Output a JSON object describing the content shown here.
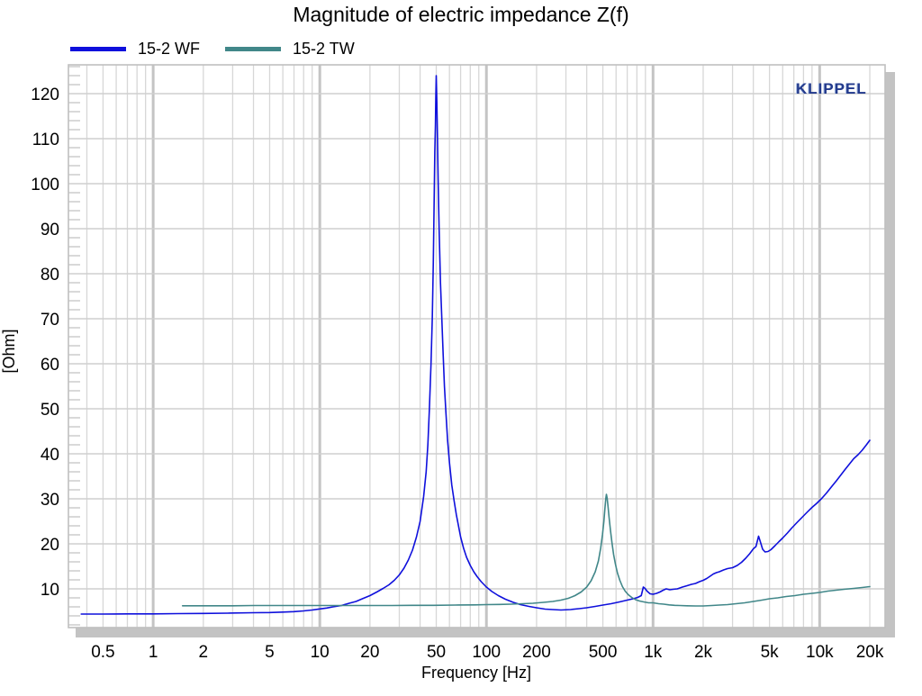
{
  "branding": {
    "watermark": "KLIPPEL",
    "color": "#233a8c"
  },
  "chart_data": {
    "type": "line",
    "title": "Magnitude of electric impedance Z(f)",
    "xlabel": "Frequency [Hz]",
    "ylabel": "[Ohm]",
    "x_scale": "log",
    "y_scale": "linear",
    "xlim": [
      0.31,
      24700
    ],
    "ylim": [
      1.4,
      126.4
    ],
    "grid": true,
    "legend_position": "top-left",
    "x_ticks": [
      {
        "label": "0.5",
        "value": 0.5
      },
      {
        "label": "1",
        "value": 1
      },
      {
        "label": "2",
        "value": 2
      },
      {
        "label": "5",
        "value": 5
      },
      {
        "label": "10",
        "value": 10
      },
      {
        "label": "20",
        "value": 20
      },
      {
        "label": "50",
        "value": 50
      },
      {
        "label": "100",
        "value": 100
      },
      {
        "label": "200",
        "value": 200
      },
      {
        "label": "500",
        "value": 500
      },
      {
        "label": "1k",
        "value": 1000
      },
      {
        "label": "2k",
        "value": 2000
      },
      {
        "label": "5k",
        "value": 5000
      },
      {
        "label": "10k",
        "value": 10000
      },
      {
        "label": "20k",
        "value": 20000
      }
    ],
    "y_ticks": [
      10,
      20,
      30,
      40,
      50,
      60,
      70,
      80,
      90,
      100,
      110,
      120
    ],
    "series": [
      {
        "name": "15-2 WF",
        "color": "#0f10dc",
        "points": [
          [
            0.37,
            4.4
          ],
          [
            0.5,
            4.4
          ],
          [
            0.7,
            4.45
          ],
          [
            1,
            4.45
          ],
          [
            1.4,
            4.5
          ],
          [
            2,
            4.55
          ],
          [
            2.8,
            4.6
          ],
          [
            4,
            4.7
          ],
          [
            5,
            4.75
          ],
          [
            6,
            4.85
          ],
          [
            7,
            4.95
          ],
          [
            8,
            5.1
          ],
          [
            9,
            5.3
          ],
          [
            10,
            5.55
          ],
          [
            11,
            5.75
          ],
          [
            12,
            6.0
          ],
          [
            13.5,
            6.3
          ],
          [
            15,
            6.8
          ],
          [
            16.5,
            7.2
          ],
          [
            18,
            7.8
          ],
          [
            20,
            8.5
          ],
          [
            22,
            9.3
          ],
          [
            24,
            10.1
          ],
          [
            26,
            10.9
          ],
          [
            28,
            11.9
          ],
          [
            30,
            13.1
          ],
          [
            32,
            14.6
          ],
          [
            34,
            16.4
          ],
          [
            36,
            18.6
          ],
          [
            38,
            21.5
          ],
          [
            40,
            25
          ],
          [
            42,
            30.5
          ],
          [
            43.5,
            36
          ],
          [
            44.5,
            42
          ],
          [
            45.5,
            50
          ],
          [
            46.5,
            60
          ],
          [
            47.3,
            70
          ],
          [
            48,
            82
          ],
          [
            48.5,
            95
          ],
          [
            49,
            107
          ],
          [
            49.4,
            113
          ],
          [
            49.7,
            119
          ],
          [
            50,
            124
          ],
          [
            50.4,
            118
          ],
          [
            50.8,
            111
          ],
          [
            51.3,
            101
          ],
          [
            52,
            90
          ],
          [
            53,
            78
          ],
          [
            54,
            70
          ],
          [
            55,
            62
          ],
          [
            56,
            55
          ],
          [
            57.2,
            49
          ],
          [
            58.5,
            43
          ],
          [
            60,
            38
          ],
          [
            62,
            33
          ],
          [
            64,
            29.5
          ],
          [
            66,
            26.5
          ],
          [
            68,
            24
          ],
          [
            70,
            21.5
          ],
          [
            73,
            19
          ],
          [
            76,
            17
          ],
          [
            80,
            15.2
          ],
          [
            84,
            13.8
          ],
          [
            88,
            12.7
          ],
          [
            93,
            11.6
          ],
          [
            100,
            10.4
          ],
          [
            108,
            9.4
          ],
          [
            118,
            8.5
          ],
          [
            130,
            7.7
          ],
          [
            145,
            7.0
          ],
          [
            160,
            6.5
          ],
          [
            180,
            6.1
          ],
          [
            200,
            5.8
          ],
          [
            225,
            5.5
          ],
          [
            250,
            5.4
          ],
          [
            280,
            5.3
          ],
          [
            320,
            5.4
          ],
          [
            360,
            5.6
          ],
          [
            400,
            5.8
          ],
          [
            450,
            6.1
          ],
          [
            500,
            6.4
          ],
          [
            560,
            6.7
          ],
          [
            630,
            7.1
          ],
          [
            700,
            7.5
          ],
          [
            760,
            7.8
          ],
          [
            810,
            8.1
          ],
          [
            850,
            8.5
          ],
          [
            875,
            10.4
          ],
          [
            895,
            10.1
          ],
          [
            920,
            9.5
          ],
          [
            960,
            8.9
          ],
          [
            1000,
            8.8
          ],
          [
            1050,
            9.0
          ],
          [
            1100,
            9.3
          ],
          [
            1150,
            9.7
          ],
          [
            1200,
            10.0
          ],
          [
            1260,
            9.8
          ],
          [
            1320,
            9.9
          ],
          [
            1400,
            10.0
          ],
          [
            1500,
            10.4
          ],
          [
            1600,
            10.7
          ],
          [
            1700,
            11.0
          ],
          [
            1800,
            11.2
          ],
          [
            1900,
            11.6
          ],
          [
            2000,
            11.9
          ],
          [
            2100,
            12.3
          ],
          [
            2200,
            12.8
          ],
          [
            2300,
            13.3
          ],
          [
            2400,
            13.6
          ],
          [
            2500,
            13.8
          ],
          [
            2650,
            14.2
          ],
          [
            2800,
            14.5
          ],
          [
            3000,
            14.7
          ],
          [
            3200,
            15.2
          ],
          [
            3400,
            15.9
          ],
          [
            3600,
            16.8
          ],
          [
            3800,
            17.8
          ],
          [
            4000,
            18.9
          ],
          [
            4150,
            19.4
          ],
          [
            4300,
            21.7
          ],
          [
            4400,
            20.5
          ],
          [
            4550,
            18.8
          ],
          [
            4700,
            18.2
          ],
          [
            4900,
            18.3
          ],
          [
            5100,
            18.7
          ],
          [
            5400,
            19.6
          ],
          [
            5700,
            20.5
          ],
          [
            6000,
            21.3
          ],
          [
            6400,
            22.4
          ],
          [
            6800,
            23.5
          ],
          [
            7300,
            24.7
          ],
          [
            7800,
            25.8
          ],
          [
            8400,
            27.0
          ],
          [
            9000,
            28.1
          ],
          [
            9600,
            29.0
          ],
          [
            10300,
            30.1
          ],
          [
            11000,
            31.3
          ],
          [
            11800,
            32.7
          ],
          [
            12600,
            34.0
          ],
          [
            13400,
            35.3
          ],
          [
            14200,
            36.5
          ],
          [
            15000,
            37.6
          ],
          [
            16000,
            38.9
          ],
          [
            17000,
            39.8
          ],
          [
            18000,
            40.8
          ],
          [
            19000,
            41.9
          ],
          [
            20000,
            43.0
          ]
        ]
      },
      {
        "name": "15-2 TW",
        "color": "#418789",
        "points": [
          [
            1.5,
            6.25
          ],
          [
            2,
            6.25
          ],
          [
            3,
            6.25
          ],
          [
            4,
            6.3
          ],
          [
            6,
            6.3
          ],
          [
            8,
            6.3
          ],
          [
            11,
            6.3
          ],
          [
            15,
            6.3
          ],
          [
            20,
            6.3
          ],
          [
            27,
            6.3
          ],
          [
            36,
            6.35
          ],
          [
            48,
            6.35
          ],
          [
            65,
            6.4
          ],
          [
            85,
            6.45
          ],
          [
            100,
            6.5
          ],
          [
            120,
            6.55
          ],
          [
            140,
            6.6
          ],
          [
            165,
            6.7
          ],
          [
            190,
            6.8
          ],
          [
            220,
            7.0
          ],
          [
            250,
            7.2
          ],
          [
            280,
            7.5
          ],
          [
            310,
            7.9
          ],
          [
            340,
            8.5
          ],
          [
            370,
            9.3
          ],
          [
            400,
            10.4
          ],
          [
            425,
            11.8
          ],
          [
            450,
            13.8
          ],
          [
            470,
            16.2
          ],
          [
            485,
            19.0
          ],
          [
            497,
            22.0
          ],
          [
            507,
            25.0
          ],
          [
            515,
            28.0
          ],
          [
            521,
            30.2
          ],
          [
            525,
            31.0
          ],
          [
            530,
            30.2
          ],
          [
            537,
            28.3
          ],
          [
            545,
            25.8
          ],
          [
            555,
            23.0
          ],
          [
            567,
            20.2
          ],
          [
            580,
            17.6
          ],
          [
            595,
            15.4
          ],
          [
            612,
            13.5
          ],
          [
            632,
            11.9
          ],
          [
            655,
            10.5
          ],
          [
            680,
            9.5
          ],
          [
            710,
            8.7
          ],
          [
            745,
            8.1
          ],
          [
            785,
            7.6
          ],
          [
            830,
            7.3
          ],
          [
            880,
            7.1
          ],
          [
            940,
            6.9
          ],
          [
            1000,
            6.9
          ],
          [
            1080,
            6.7
          ],
          [
            1160,
            6.6
          ],
          [
            1250,
            6.45
          ],
          [
            1350,
            6.35
          ],
          [
            1450,
            6.3
          ],
          [
            1600,
            6.25
          ],
          [
            1800,
            6.2
          ],
          [
            2000,
            6.2
          ],
          [
            2250,
            6.3
          ],
          [
            2500,
            6.4
          ],
          [
            2800,
            6.5
          ],
          [
            3150,
            6.7
          ],
          [
            3550,
            6.9
          ],
          [
            4000,
            7.2
          ],
          [
            4500,
            7.5
          ],
          [
            5000,
            7.8
          ],
          [
            5600,
            8.0
          ],
          [
            6300,
            8.3
          ],
          [
            7100,
            8.5
          ],
          [
            8000,
            8.8
          ],
          [
            9000,
            9.0
          ],
          [
            10000,
            9.2
          ],
          [
            11200,
            9.5
          ],
          [
            12500,
            9.7
          ],
          [
            14000,
            9.9
          ],
          [
            16000,
            10.1
          ],
          [
            18000,
            10.3
          ],
          [
            20000,
            10.5
          ]
        ]
      }
    ]
  }
}
